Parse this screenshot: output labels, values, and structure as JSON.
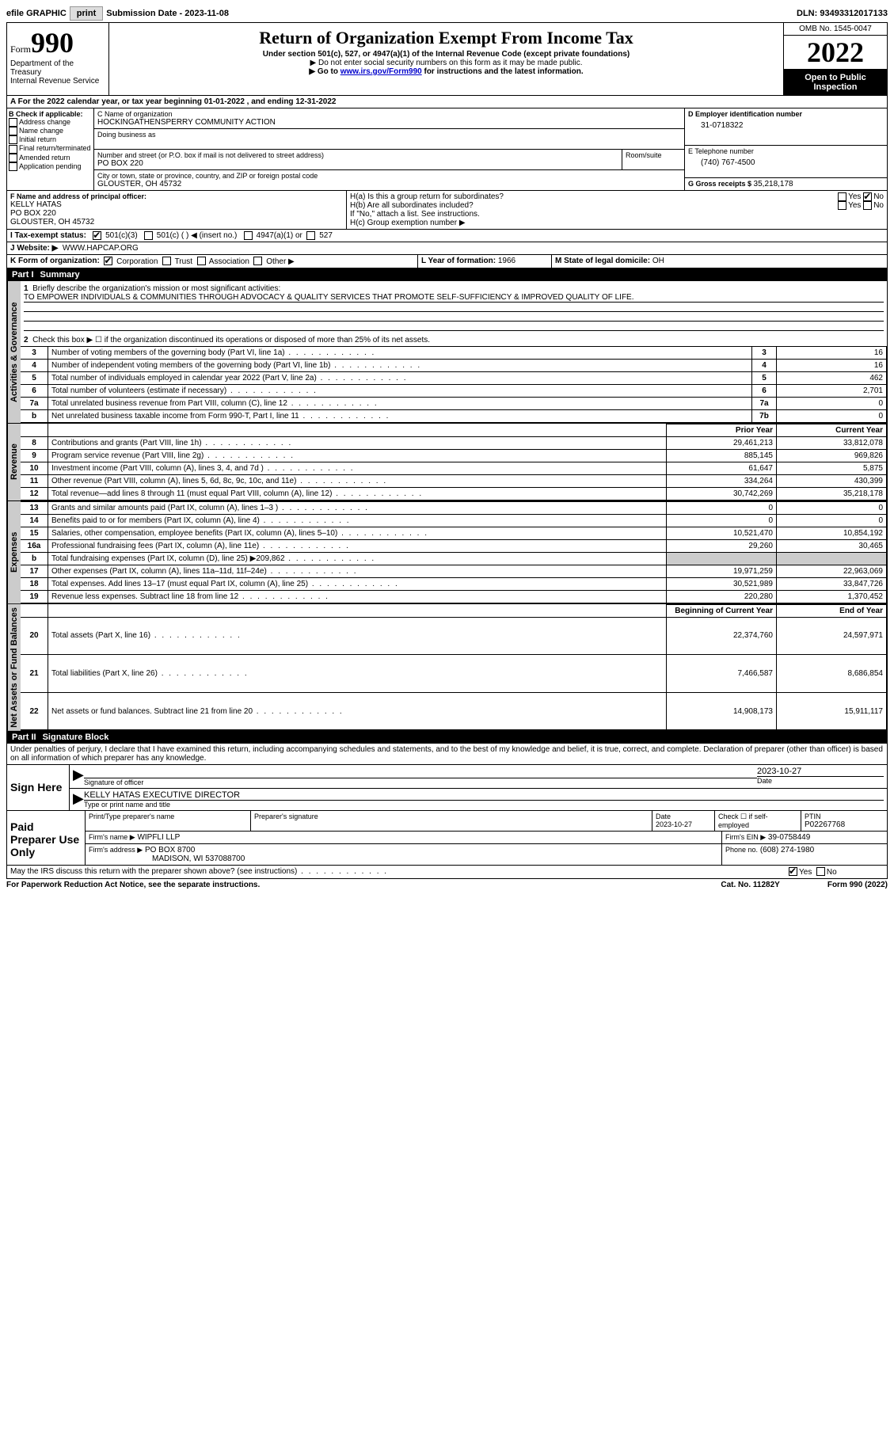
{
  "topbar": {
    "efile_label": "efile GRAPHIC",
    "print_btn": "print",
    "sub_label": "Submission Date - ",
    "sub_date": "2023-11-08",
    "dln_label": "DLN: ",
    "dln": "93493312017133"
  },
  "header": {
    "form_word": "Form",
    "form_num": "990",
    "dept": "Department of the Treasury",
    "irs": "Internal Revenue Service",
    "title": "Return of Organization Exempt From Income Tax",
    "subtitle": "Under section 501(c), 527, or 4947(a)(1) of the Internal Revenue Code (except private foundations)",
    "note1": "▶ Do not enter social security numbers on this form as it may be made public.",
    "note2_pre": "▶ Go to ",
    "note2_link": "www.irs.gov/Form990",
    "note2_post": " for instructions and the latest information.",
    "omb": "OMB No. 1545-0047",
    "year": "2022",
    "inspection": "Open to Public Inspection"
  },
  "line_a": "A For the 2022 calendar year, or tax year beginning 01-01-2022   , and ending 12-31-2022",
  "box_b": {
    "title": "B Check if applicable:",
    "items": [
      "Address change",
      "Name change",
      "Initial return",
      "Final return/terminated",
      "Amended return",
      "Application pending"
    ]
  },
  "box_c": {
    "name_lbl": "C Name of organization",
    "name": "HOCKINGATHENSPERRY COMMUNITY ACTION",
    "dba_lbl": "Doing business as",
    "street_lbl": "Number and street (or P.O. box if mail is not delivered to street address)",
    "room_lbl": "Room/suite",
    "street": "PO BOX 220",
    "city_lbl": "City or town, state or province, country, and ZIP or foreign postal code",
    "city": "GLOUSTER, OH  45732"
  },
  "box_d": {
    "lbl": "D Employer identification number",
    "val": "31-0718322"
  },
  "box_e": {
    "lbl": "E Telephone number",
    "val": "(740) 767-4500"
  },
  "box_g": {
    "lbl": "G Gross receipts $ ",
    "val": "35,218,178"
  },
  "box_f": {
    "lbl": "F Name and address of principal officer:",
    "name": "KELLY HATAS",
    "addr1": "PO BOX 220",
    "addr2": "GLOUSTER, OH  45732"
  },
  "box_h": {
    "a": "H(a)  Is this a group return for subordinates?",
    "b": "H(b)  Are all subordinates included?",
    "b_note": "If \"No,\" attach a list. See instructions.",
    "c": "H(c)  Group exemption number ▶",
    "yes": "Yes",
    "no": "No"
  },
  "box_i": {
    "lbl": "I   Tax-exempt status:",
    "o1": "501(c)(3)",
    "o2": "501(c) (  ) ◀ (insert no.)",
    "o3": "4947(a)(1) or",
    "o4": "527"
  },
  "box_j": {
    "lbl": "J   Website: ▶",
    "val": "WWW.HAPCAP.ORG"
  },
  "box_k": {
    "lbl": "K Form of organization:",
    "o1": "Corporation",
    "o2": "Trust",
    "o3": "Association",
    "o4": "Other ▶"
  },
  "box_l": {
    "lbl": "L Year of formation: ",
    "val": "1966"
  },
  "box_m": {
    "lbl": "M State of legal domicile: ",
    "val": "OH"
  },
  "part1": {
    "hdr_num": "Part I",
    "hdr_title": "Summary",
    "l1_lbl": "Briefly describe the organization's mission or most significant activities:",
    "l1_val": "TO EMPOWER INDIVIDUALS & COMMUNITIES THROUGH ADVOCACY & QUALITY SERVICES THAT PROMOTE SELF-SUFFICIENCY & IMPROVED QUALITY OF LIFE.",
    "l2": "Check this box ▶ ☐ if the organization discontinued its operations or disposed of more than 25% of its net assets.",
    "rows_a": [
      {
        "n": "3",
        "t": "Number of voting members of the governing body (Part VI, line 1a)",
        "box": "3",
        "v": "16"
      },
      {
        "n": "4",
        "t": "Number of independent voting members of the governing body (Part VI, line 1b)",
        "box": "4",
        "v": "16"
      },
      {
        "n": "5",
        "t": "Total number of individuals employed in calendar year 2022 (Part V, line 2a)",
        "box": "5",
        "v": "462"
      },
      {
        "n": "6",
        "t": "Total number of volunteers (estimate if necessary)",
        "box": "6",
        "v": "2,701"
      },
      {
        "n": "7a",
        "t": "Total unrelated business revenue from Part VIII, column (C), line 12",
        "box": "7a",
        "v": "0"
      },
      {
        "n": "b",
        "t": "Net unrelated business taxable income from Form 990-T, Part I, line 11",
        "box": "7b",
        "v": "0"
      }
    ],
    "col_prior": "Prior Year",
    "col_current": "Current Year",
    "rows_rev": [
      {
        "n": "8",
        "t": "Contributions and grants (Part VIII, line 1h)",
        "p": "29,461,213",
        "c": "33,812,078"
      },
      {
        "n": "9",
        "t": "Program service revenue (Part VIII, line 2g)",
        "p": "885,145",
        "c": "969,826"
      },
      {
        "n": "10",
        "t": "Investment income (Part VIII, column (A), lines 3, 4, and 7d )",
        "p": "61,647",
        "c": "5,875"
      },
      {
        "n": "11",
        "t": "Other revenue (Part VIII, column (A), lines 5, 6d, 8c, 9c, 10c, and 11e)",
        "p": "334,264",
        "c": "430,399"
      },
      {
        "n": "12",
        "t": "Total revenue—add lines 8 through 11 (must equal Part VIII, column (A), line 12)",
        "p": "30,742,269",
        "c": "35,218,178"
      }
    ],
    "rows_exp": [
      {
        "n": "13",
        "t": "Grants and similar amounts paid (Part IX, column (A), lines 1–3 )",
        "p": "0",
        "c": "0"
      },
      {
        "n": "14",
        "t": "Benefits paid to or for members (Part IX, column (A), line 4)",
        "p": "0",
        "c": "0"
      },
      {
        "n": "15",
        "t": "Salaries, other compensation, employee benefits (Part IX, column (A), lines 5–10)",
        "p": "10,521,470",
        "c": "10,854,192"
      },
      {
        "n": "16a",
        "t": "Professional fundraising fees (Part IX, column (A), line 11e)",
        "p": "29,260",
        "c": "30,465"
      },
      {
        "n": "b",
        "t": "Total fundraising expenses (Part IX, column (D), line 25) ▶209,862",
        "p": "",
        "c": "",
        "shade": true
      },
      {
        "n": "17",
        "t": "Other expenses (Part IX, column (A), lines 11a–11d, 11f–24e)",
        "p": "19,971,259",
        "c": "22,963,069"
      },
      {
        "n": "18",
        "t": "Total expenses. Add lines 13–17 (must equal Part IX, column (A), line 25)",
        "p": "30,521,989",
        "c": "33,847,726"
      },
      {
        "n": "19",
        "t": "Revenue less expenses. Subtract line 18 from line 12",
        "p": "220,280",
        "c": "1,370,452"
      }
    ],
    "col_begin": "Beginning of Current Year",
    "col_end": "End of Year",
    "rows_net": [
      {
        "n": "20",
        "t": "Total assets (Part X, line 16)",
        "p": "22,374,760",
        "c": "24,597,971"
      },
      {
        "n": "21",
        "t": "Total liabilities (Part X, line 26)",
        "p": "7,466,587",
        "c": "8,686,854"
      },
      {
        "n": "22",
        "t": "Net assets or fund balances. Subtract line 21 from line 20",
        "p": "14,908,173",
        "c": "15,911,117"
      }
    ],
    "tab_gov": "Activities & Governance",
    "tab_rev": "Revenue",
    "tab_exp": "Expenses",
    "tab_net": "Net Assets or Fund Balances"
  },
  "part2": {
    "hdr_num": "Part II",
    "hdr_title": "Signature Block",
    "penalty": "Under penalties of perjury, I declare that I have examined this return, including accompanying schedules and statements, and to the best of my knowledge and belief, it is true, correct, and complete. Declaration of preparer (other than officer) is based on all information of which preparer has any knowledge.",
    "sign_here": "Sign Here",
    "sig_officer": "Signature of officer",
    "sig_date": "2023-10-27",
    "date_lbl": "Date",
    "officer_name": "KELLY HATAS EXECUTIVE DIRECTOR",
    "type_name_lbl": "Type or print name and title",
    "paid": "Paid Preparer Use Only",
    "prep_name_lbl": "Print/Type preparer's name",
    "prep_sig_lbl": "Preparer's signature",
    "prep_date_lbl": "Date",
    "prep_date": "2023-10-27",
    "check_self": "Check ☐ if self-employed",
    "ptin_lbl": "PTIN",
    "ptin": "P02267768",
    "firm_name_lbl": "Firm's name   ▶",
    "firm_name": "WIPFLI LLP",
    "firm_ein_lbl": "Firm's EIN ▶",
    "firm_ein": "39-0758449",
    "firm_addr_lbl": "Firm's address ▶",
    "firm_addr": "PO BOX 8700",
    "firm_addr2": "MADISON, WI  537088700",
    "firm_phone_lbl": "Phone no.",
    "firm_phone": "(608) 274-1980",
    "discuss": "May the IRS discuss this return with the preparer shown above? (see instructions)",
    "yes": "Yes",
    "no": "No"
  },
  "footer": {
    "l": "For Paperwork Reduction Act Notice, see the separate instructions.",
    "m": "Cat. No. 11282Y",
    "r": "Form 990 (2022)"
  }
}
